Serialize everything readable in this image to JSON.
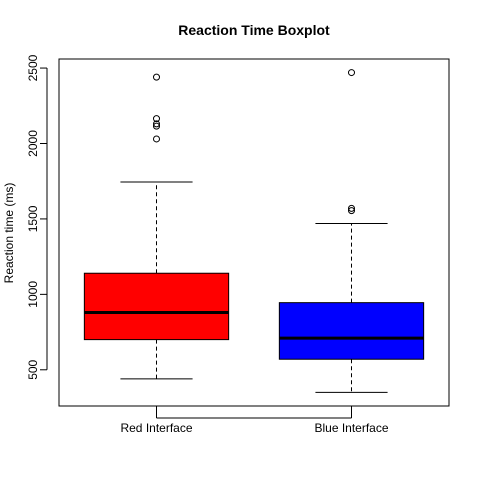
{
  "chart_data": {
    "type": "boxplot",
    "title": "Reaction Time Boxplot",
    "ylabel": "Reaction time (ms)",
    "xlabel": "",
    "ylim": [
      260,
      2560
    ],
    "yticks": [
      500,
      1000,
      1500,
      2000,
      2500
    ],
    "grid": false,
    "legend": "none",
    "categories": [
      "Red Interface",
      "Blue Interface"
    ],
    "boxes": [
      {
        "category": "Red Interface",
        "color": "#ff0000",
        "whisker_low": 440,
        "q1": 700,
        "median": 880,
        "q3": 1140,
        "whisker_high": 1745,
        "outliers": [
          2030,
          2115,
          2130,
          2165,
          2440
        ]
      },
      {
        "category": "Blue Interface",
        "color": "#0000ff",
        "whisker_low": 350,
        "q1": 570,
        "median": 710,
        "q3": 945,
        "whisker_high": 1470,
        "outliers": [
          1555,
          1570,
          2470
        ]
      }
    ]
  }
}
